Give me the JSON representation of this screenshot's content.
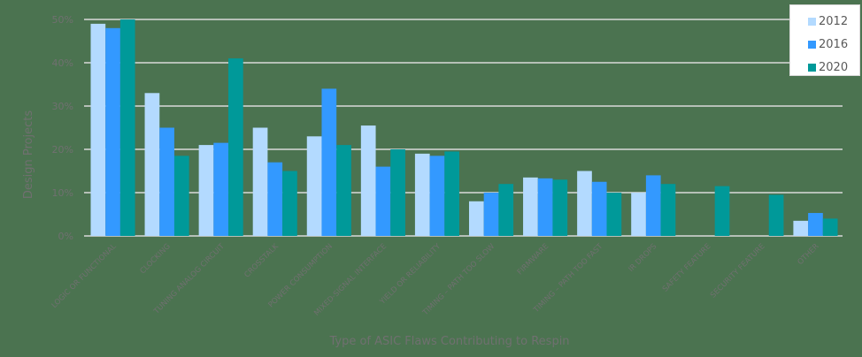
{
  "chart_data": {
    "type": "bar",
    "title": "",
    "xlabel": "Type of ASIC Flaws Contributing to Respin",
    "ylabel": "Design Projects",
    "ylim": [
      0,
      50
    ],
    "yticks": [
      "0%",
      "10%",
      "20%",
      "30%",
      "40%",
      "50%"
    ],
    "grid": true,
    "legend_position": "top-right",
    "categories": [
      "LOGIC OR FUNCTIONAL",
      "CLOCKING",
      "TUNING ANALOG CIRCUIT",
      "CROSSTALK",
      "POWER CONSUMPTION",
      "MIXED-SIGNAL INTERFACE",
      "YIELD OR RELIABILITY",
      "TIMING – PATH TOO SLOW",
      "FIRMWARE",
      "TIMING – PATH TOO FAST",
      "IR DROPS",
      "SAFETY FEATURE",
      "SECURITY FEATURE",
      "OTHER"
    ],
    "series": [
      {
        "name": "2012",
        "color": "#b3daff",
        "values": [
          49,
          33,
          21,
          25,
          23,
          25.5,
          19,
          8,
          13.5,
          15,
          10,
          null,
          null,
          3.5
        ]
      },
      {
        "name": "2016",
        "color": "#3399ff",
        "values": [
          48,
          25,
          21.5,
          17,
          34,
          16,
          18.5,
          10,
          13.3,
          12.5,
          14,
          null,
          null,
          5.3
        ]
      },
      {
        "name": "2020",
        "color": "#009999",
        "values": [
          50,
          18.5,
          41,
          15,
          21,
          20,
          19.5,
          12,
          13,
          10,
          12,
          11.5,
          9.5,
          4
        ]
      }
    ]
  },
  "legend": {
    "items": [
      {
        "label": "2012",
        "color": "#b3daff"
      },
      {
        "label": "2016",
        "color": "#3399ff"
      },
      {
        "label": "2020",
        "color": "#009999"
      }
    ]
  },
  "colors": {
    "gridline": "#d9d9d9",
    "axis_text": "#707070",
    "background": "#4b7350"
  }
}
